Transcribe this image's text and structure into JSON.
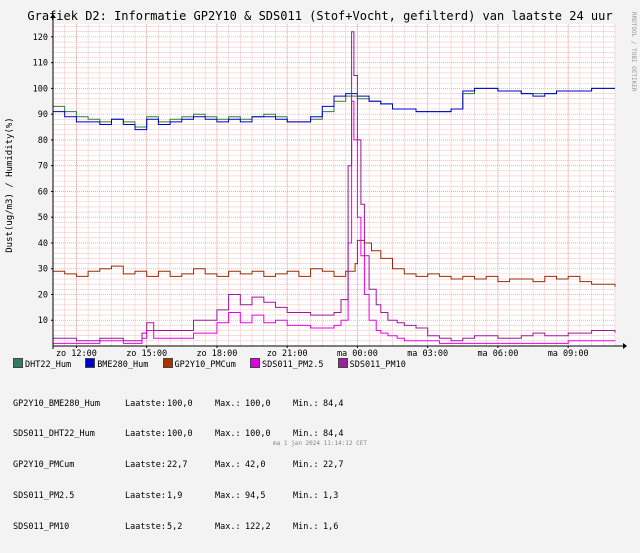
{
  "title": "Grafiek D2: Informatie GP2Y10 & SDS011 (Stof+Vocht, gefilterd) van laatste 24 uur",
  "side_text": "RRDTOOL / TOBI OETIKER",
  "footer": "ma  1 jan 2024 11:14:12 CET",
  "chart_data": {
    "type": "line",
    "title": "Grafiek D2: Informatie GP2Y10 & SDS011 (Stof+Vocht, gefilterd) van laatste 24 uur",
    "ylabel": "Dust(ug/m3) / Humidity(%)",
    "xlabel": "",
    "xlim": [
      0,
      24
    ],
    "ylim": [
      0,
      125
    ],
    "yticks": [
      10,
      20,
      30,
      40,
      50,
      60,
      70,
      80,
      90,
      100,
      110,
      120
    ],
    "xticks": [
      {
        "x": 1,
        "label": "zo 12:00"
      },
      {
        "x": 4,
        "label": "zo 15:00"
      },
      {
        "x": 7,
        "label": "zo 18:00"
      },
      {
        "x": 10,
        "label": "zo 21:00"
      },
      {
        "x": 13,
        "label": "ma 00:00"
      },
      {
        "x": 16,
        "label": "ma 03:00"
      },
      {
        "x": 19,
        "label": "ma 06:00"
      },
      {
        "x": 22,
        "label": "ma 09:00"
      }
    ],
    "grid": true,
    "series": [
      {
        "name": "DHT22_Hum",
        "color": "#2e7d32",
        "legend_color": "#2e7d5e",
        "x": [
          0,
          0.5,
          1,
          1.5,
          2,
          2.5,
          3,
          3.5,
          4,
          4.5,
          5,
          5.5,
          6,
          6.5,
          7,
          7.5,
          8,
          8.5,
          9,
          9.5,
          10,
          10.5,
          11,
          11.5,
          12,
          12.5,
          13,
          13.5,
          14,
          14.5,
          15,
          15.5,
          16,
          16.5,
          17,
          17.5,
          18,
          18.5,
          19,
          19.5,
          20,
          20.5,
          21,
          21.5,
          22,
          22.5,
          23,
          23.5,
          24
        ],
        "values": [
          93,
          91,
          89,
          88,
          87,
          88,
          87,
          85,
          89,
          87,
          88,
          89,
          90,
          89,
          88,
          89,
          88,
          89,
          90,
          89,
          87,
          87,
          88,
          91,
          95,
          97,
          96,
          95,
          94,
          92,
          92,
          91,
          91,
          91,
          92,
          98,
          100,
          100,
          99,
          99,
          98,
          98,
          98,
          99,
          99,
          99,
          100,
          100,
          100
        ]
      },
      {
        "name": "BME280_Hum",
        "color": "#0000cc",
        "legend_color": "#0000cc",
        "x": [
          0,
          0.5,
          1,
          1.5,
          2,
          2.5,
          3,
          3.5,
          4,
          4.5,
          5,
          5.5,
          6,
          6.5,
          7,
          7.5,
          8,
          8.5,
          9,
          9.5,
          10,
          10.5,
          11,
          11.5,
          12,
          12.5,
          13,
          13.5,
          14,
          14.5,
          15,
          15.5,
          16,
          16.5,
          17,
          17.5,
          18,
          18.5,
          19,
          19.5,
          20,
          20.5,
          21,
          21.5,
          22,
          22.5,
          23,
          23.5,
          24
        ],
        "values": [
          91,
          89,
          87,
          87,
          86,
          88,
          86,
          84,
          88,
          86,
          87,
          88,
          89,
          88,
          87,
          88,
          87,
          89,
          89,
          88,
          87,
          87,
          89,
          93,
          97,
          98,
          97,
          95,
          94,
          92,
          92,
          91,
          91,
          91,
          92,
          99,
          100,
          100,
          99,
          99,
          98,
          97,
          98,
          99,
          99,
          99,
          100,
          100,
          100
        ]
      },
      {
        "name": "GP2Y10_PMCum",
        "color": "#9c2a00",
        "legend_color": "#b03000",
        "x": [
          0,
          0.5,
          1,
          1.5,
          2,
          2.5,
          3,
          3.5,
          4,
          4.5,
          5,
          5.5,
          6,
          6.5,
          7,
          7.5,
          8,
          8.5,
          9,
          9.5,
          10,
          10.5,
          11,
          11.5,
          12,
          12.5,
          12.9,
          13,
          13.3,
          13.6,
          14,
          14.5,
          15,
          15.5,
          16,
          16.5,
          17,
          17.5,
          18,
          18.5,
          19,
          19.5,
          20,
          20.5,
          21,
          21.5,
          22,
          22.5,
          23,
          23.5,
          24
        ],
        "values": [
          29,
          28,
          27,
          29,
          30,
          31,
          28,
          29,
          27,
          29,
          27,
          28,
          30,
          28,
          27,
          29,
          28,
          29,
          27,
          28,
          29,
          27,
          30,
          29,
          27,
          29,
          32,
          41,
          40,
          37,
          34,
          30,
          28,
          27,
          28,
          27,
          26,
          27,
          26,
          27,
          25,
          26,
          26,
          25,
          27,
          26,
          27,
          25,
          24,
          24,
          23
        ]
      },
      {
        "name": "SDS011_PM2.5",
        "color": "#e800e8",
        "legend_color": "#e000e0",
        "x": [
          0,
          1,
          2,
          3,
          3.8,
          4,
          4.3,
          5,
          6,
          7,
          7.5,
          8,
          8.5,
          9,
          9.5,
          10,
          11,
          12,
          12.3,
          12.6,
          12.75,
          12.85,
          13,
          13.15,
          13.3,
          13.5,
          13.8,
          14,
          14.3,
          14.7,
          15,
          15.5,
          16,
          16.5,
          17,
          18,
          19,
          20,
          21,
          22,
          23,
          24
        ],
        "values": [
          1,
          1,
          2,
          1,
          3,
          6,
          3,
          3,
          5,
          9,
          13,
          9,
          12,
          9,
          10,
          8,
          7,
          8,
          10,
          40,
          95,
          80,
          50,
          35,
          20,
          10,
          6,
          5,
          4,
          3,
          2,
          2,
          2,
          1,
          1,
          1,
          1,
          1,
          1,
          2,
          2,
          1.9
        ]
      },
      {
        "name": "SDS011_PM10",
        "color": "#a0159c",
        "legend_color": "#9e1e9e",
        "x": [
          0,
          1,
          2,
          3,
          3.8,
          4,
          4.3,
          5,
          6,
          7,
          7.5,
          8,
          8.5,
          9,
          9.5,
          10,
          11,
          12,
          12.3,
          12.6,
          12.75,
          12.85,
          13,
          13.15,
          13.3,
          13.5,
          13.8,
          14,
          14.3,
          14.7,
          15,
          15.5,
          16,
          16.5,
          17,
          17.5,
          18,
          19,
          20,
          20.5,
          21,
          22,
          23,
          24
        ],
        "values": [
          3,
          2,
          3,
          2,
          5,
          9,
          6,
          6,
          10,
          14,
          20,
          16,
          19,
          17,
          15,
          13,
          12,
          13,
          18,
          70,
          122,
          105,
          80,
          55,
          35,
          22,
          16,
          13,
          10,
          9,
          8,
          7,
          4,
          3,
          2,
          3,
          4,
          3,
          4,
          5,
          4,
          5,
          6,
          5.2
        ]
      }
    ]
  },
  "legend": [
    {
      "label": "DHT22_Hum",
      "color": "#2e7d5e"
    },
    {
      "label": "BME280_Hum",
      "color": "#0000cc"
    },
    {
      "label": "GP2Y10_PMCum",
      "color": "#b03000"
    },
    {
      "label": "SDS011_PM2.5",
      "color": "#e000e0"
    },
    {
      "label": "SDS011_PM10",
      "color": "#9e1e9e"
    }
  ],
  "stats": {
    "label_last": "Laatste:",
    "label_max": "Max.:",
    "label_min": "Min.:",
    "rows": [
      {
        "name": "GP2Y10_BME280_Hum",
        "last": "100,0",
        "max": "100,0",
        "min": "84,4"
      },
      {
        "name": "SDS011_DHT22_Hum",
        "last": "100,0",
        "max": "100,0",
        "min": "84,4"
      },
      {
        "name": "GP2Y10_PMCum",
        "last": "22,7",
        "max": "42,0",
        "min": "22,7"
      },
      {
        "name": "SDS011_PM2.5",
        "last": "1,9",
        "max": "94,5",
        "min": "1,3"
      },
      {
        "name": "SDS011_PM10",
        "last": "5,2",
        "max": "122,2",
        "min": "1,6"
      }
    ]
  }
}
